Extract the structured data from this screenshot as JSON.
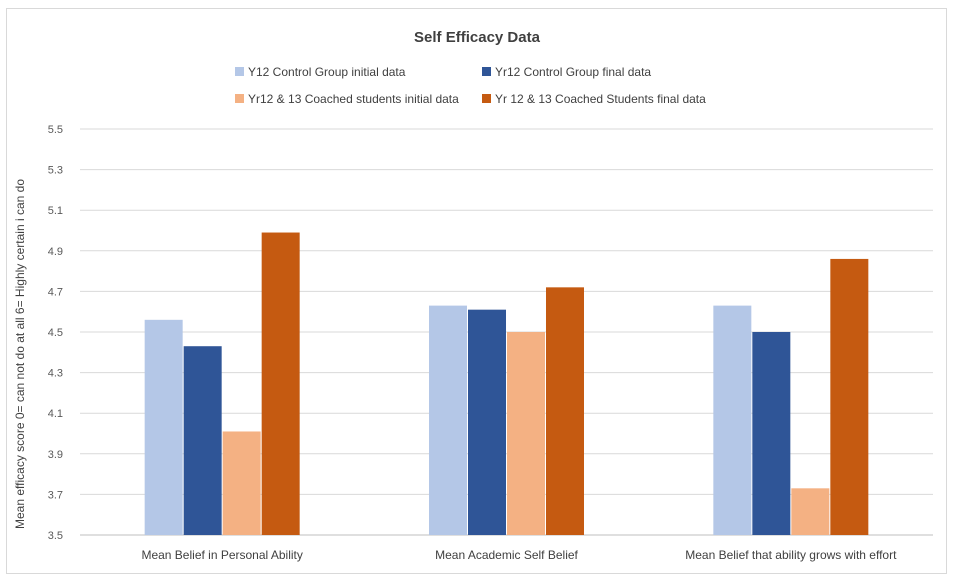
{
  "chart_data": {
    "type": "bar",
    "title": "Self Efficacy Data",
    "ylabel": "Mean efficacy score 0= can not do at all 6= Highly certain i can do",
    "xlabel": "",
    "ylim": [
      3.5,
      5.5
    ],
    "yticks": [
      "3.5",
      "3.7",
      "3.9",
      "4.1",
      "4.3",
      "4.5",
      "4.7",
      "4.9",
      "5.1",
      "5.3",
      "5.5"
    ],
    "grid": true,
    "legend_position": "top",
    "categories": [
      "Mean Belief in Personal Ability",
      "Mean Academic Self Belief",
      "Mean Belief that ability grows with effort"
    ],
    "series": [
      {
        "name": "Y12 Control Group initial data",
        "color": "#b4c7e7",
        "values": [
          4.56,
          4.63,
          4.63
        ]
      },
      {
        "name": "Yr12 Control Group final data",
        "color": "#2f5597",
        "values": [
          4.43,
          4.61,
          4.5
        ]
      },
      {
        "name": "Yr12 & 13 Coached students initial data",
        "color": "#f4b183",
        "values": [
          4.01,
          4.5,
          3.73
        ]
      },
      {
        "name": "Yr 12 & 13 Coached Students final data",
        "color": "#c55a11",
        "values": [
          4.99,
          4.72,
          4.86
        ]
      }
    ]
  }
}
